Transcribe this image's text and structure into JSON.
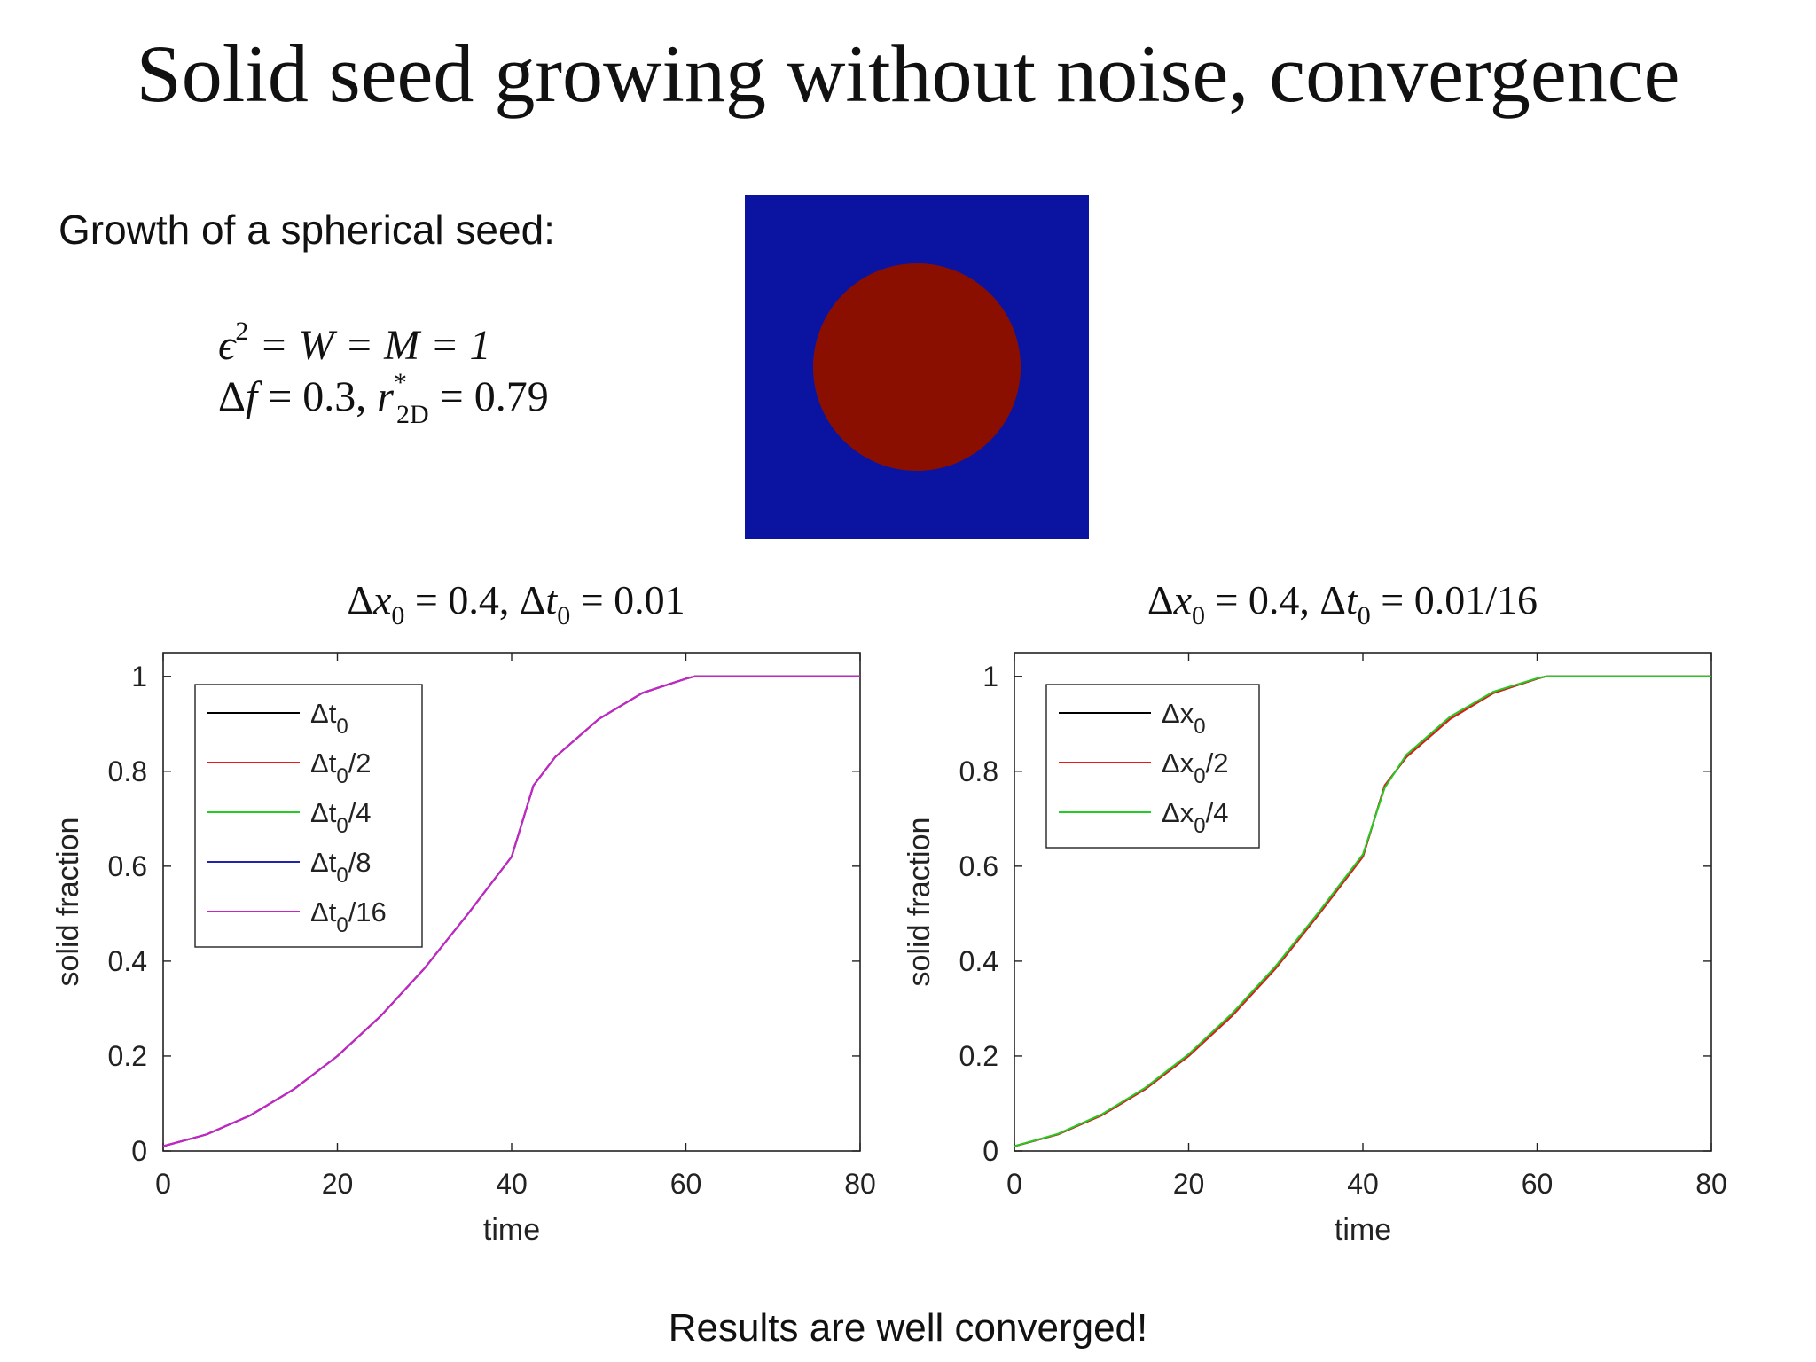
{
  "title": "Solid seed growing without noise, convergence",
  "subtitle": "Growth of a spherical seed:",
  "equations": {
    "line1": {
      "lhs_symbol": "ϵ",
      "lhs_exp": "2",
      "mid": " = W = M = 1"
    },
    "line2": {
      "delta": "Δ",
      "f": "f",
      "f_val": " = 0.3, ",
      "r": "r",
      "r_sup": "*",
      "r_sub": "2D",
      "r_val": " = 0.79"
    }
  },
  "footer": "Results are well converged!",
  "colors": {
    "black": "#000000",
    "red": "#e41a1c",
    "green": "#22cc22",
    "blue": "#2222aa",
    "magenta": "#cc22cc"
  },
  "chart_data": [
    {
      "type": "line",
      "title_parts": {
        "a": "Δ",
        "b": "x",
        "c": "0",
        "d": " = 0.4, Δ",
        "e": "t",
        "f": "0",
        "g": " = 0.01"
      },
      "xlabel": "time",
      "ylabel": "solid fraction",
      "xlim": [
        0,
        80
      ],
      "ylim": [
        0,
        1.05
      ],
      "xticks": [
        0,
        20,
        40,
        60,
        80
      ],
      "yticks": [
        0,
        0.2,
        0.4,
        0.6,
        0.8,
        1
      ],
      "ytick_labels": [
        "0",
        "0.2",
        "0.4",
        "0.6",
        "0.8",
        "1"
      ],
      "legend": "top-left",
      "grid": false,
      "x": [
        0,
        5,
        10,
        15,
        20,
        25,
        30,
        35,
        40,
        42.5,
        45,
        50,
        55,
        60,
        61,
        65,
        70,
        75,
        80
      ],
      "series": [
        {
          "name_base": "Δt",
          "name_sub": "0",
          "name_suffix": "",
          "color": "#000000",
          "y": [
            0.01,
            0.035,
            0.075,
            0.13,
            0.2,
            0.285,
            0.385,
            0.5,
            0.62,
            0.77,
            0.83,
            0.91,
            0.965,
            0.995,
            1,
            1,
            1,
            1,
            1
          ]
        },
        {
          "name_base": "Δt",
          "name_sub": "0",
          "name_suffix": "/2",
          "color": "#e41a1c",
          "y": [
            0.01,
            0.035,
            0.075,
            0.13,
            0.2,
            0.285,
            0.385,
            0.5,
            0.62,
            0.77,
            0.83,
            0.91,
            0.965,
            0.995,
            1,
            1,
            1,
            1,
            1
          ]
        },
        {
          "name_base": "Δt",
          "name_sub": "0",
          "name_suffix": "/4",
          "color": "#22cc22",
          "y": [
            0.01,
            0.035,
            0.075,
            0.13,
            0.2,
            0.285,
            0.385,
            0.5,
            0.62,
            0.77,
            0.83,
            0.91,
            0.965,
            0.995,
            1,
            1,
            1,
            1,
            1
          ]
        },
        {
          "name_base": "Δt",
          "name_sub": "0",
          "name_suffix": "/8",
          "color": "#2222aa",
          "y": [
            0.01,
            0.035,
            0.075,
            0.13,
            0.2,
            0.285,
            0.385,
            0.5,
            0.62,
            0.77,
            0.83,
            0.91,
            0.965,
            0.995,
            1,
            1,
            1,
            1,
            1
          ]
        },
        {
          "name_base": "Δt",
          "name_sub": "0",
          "name_suffix": "/16",
          "color": "#cc22cc",
          "y": [
            0.01,
            0.035,
            0.075,
            0.13,
            0.2,
            0.285,
            0.385,
            0.5,
            0.62,
            0.77,
            0.83,
            0.91,
            0.965,
            0.995,
            1,
            1,
            1,
            1,
            1
          ]
        }
      ]
    },
    {
      "type": "line",
      "title_parts": {
        "a": "Δ",
        "b": "x",
        "c": "0",
        "d": " = 0.4, Δ",
        "e": "t",
        "f": "0",
        "g": " = 0.01/16"
      },
      "xlabel": "time",
      "ylabel": "solid fraction",
      "xlim": [
        0,
        80
      ],
      "ylim": [
        0,
        1.05
      ],
      "xticks": [
        0,
        20,
        40,
        60,
        80
      ],
      "yticks": [
        0,
        0.2,
        0.4,
        0.6,
        0.8,
        1
      ],
      "ytick_labels": [
        "0",
        "0.2",
        "0.4",
        "0.6",
        "0.8",
        "1"
      ],
      "legend": "top-left",
      "grid": false,
      "x": [
        0,
        5,
        10,
        15,
        20,
        25,
        30,
        35,
        40,
        42.5,
        45,
        50,
        55,
        60,
        61,
        65,
        70,
        75,
        80
      ],
      "series": [
        {
          "name_base": "Δx",
          "name_sub": "0",
          "name_suffix": "",
          "color": "#000000",
          "y": [
            0.01,
            0.035,
            0.075,
            0.13,
            0.2,
            0.285,
            0.385,
            0.5,
            0.62,
            0.77,
            0.83,
            0.91,
            0.965,
            0.995,
            1,
            1,
            1,
            1,
            1
          ]
        },
        {
          "name_base": "Δx",
          "name_sub": "0",
          "name_suffix": "/2",
          "color": "#e41a1c",
          "y": [
            0.01,
            0.035,
            0.075,
            0.13,
            0.2,
            0.285,
            0.385,
            0.5,
            0.62,
            0.77,
            0.83,
            0.91,
            0.965,
            0.995,
            1,
            1,
            1,
            1,
            1
          ]
        },
        {
          "name_base": "Δx",
          "name_sub": "0",
          "name_suffix": "/4",
          "color": "#22cc22",
          "y": [
            0.01,
            0.036,
            0.077,
            0.133,
            0.204,
            0.29,
            0.39,
            0.505,
            0.625,
            0.765,
            0.835,
            0.915,
            0.968,
            0.996,
            1,
            1,
            1,
            1,
            1
          ]
        }
      ]
    }
  ]
}
